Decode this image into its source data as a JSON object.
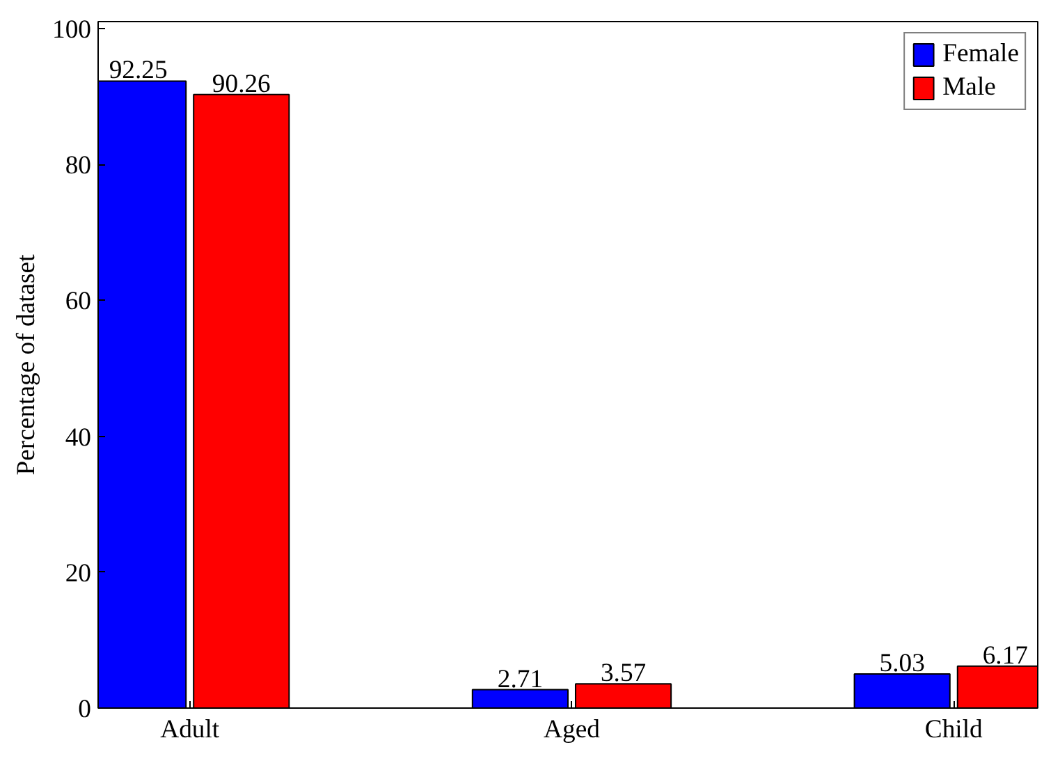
{
  "chart_data": {
    "type": "bar",
    "ylabel": "Percentage of dataset",
    "categories": [
      "Adult",
      "Aged",
      "Child"
    ],
    "series": [
      {
        "name": "Female",
        "color": "#0000ff",
        "values": [
          92.25,
          2.71,
          5.03
        ]
      },
      {
        "name": "Male",
        "color": "#ff0000",
        "values": [
          90.26,
          3.57,
          6.17
        ]
      }
    ],
    "ylim": [
      0,
      101
    ],
    "yticks": [
      0,
      20,
      40,
      60,
      80,
      100
    ],
    "data_labels": true,
    "legend": "top right",
    "grid": false
  }
}
